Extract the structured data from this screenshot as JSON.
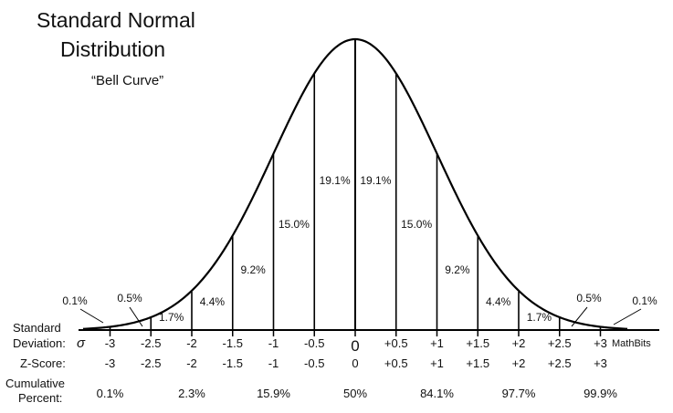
{
  "title_line1": "Standard Normal",
  "title_line2": "Distribution",
  "subtitle": "“Bell Curve”",
  "watermark": "MathBits",
  "row_labels": {
    "sd_line1": "Standard",
    "sd_line2": "Deviation:",
    "sigma": "σ",
    "z": "Z-Score:",
    "cum_line1": "Cumulative",
    "cum_line2": "Percent:"
  },
  "chart_data": {
    "type": "area",
    "curve": "standard normal density",
    "x_range": [
      -3.2,
      3.2
    ],
    "sd_ticks": [
      {
        "z": -3,
        "label": "-3"
      },
      {
        "z": -2.5,
        "label": "-2.5"
      },
      {
        "z": -2,
        "label": "-2"
      },
      {
        "z": -1.5,
        "label": "-1.5"
      },
      {
        "z": -1,
        "label": "-1"
      },
      {
        "z": -0.5,
        "label": "-0.5"
      },
      {
        "z": 0,
        "label": "0"
      },
      {
        "z": 0.5,
        "label": "+0.5"
      },
      {
        "z": 1,
        "label": "+1"
      },
      {
        "z": 1.5,
        "label": "+1.5"
      },
      {
        "z": 2,
        "label": "+2"
      },
      {
        "z": 2.5,
        "label": "+2.5"
      },
      {
        "z": 3,
        "label": "+3"
      }
    ],
    "z_scores": [
      {
        "z": -3,
        "label": "-3"
      },
      {
        "z": -2.5,
        "label": "-2.5"
      },
      {
        "z": -2,
        "label": "-2"
      },
      {
        "z": -1.5,
        "label": "-1.5"
      },
      {
        "z": -1,
        "label": "-1"
      },
      {
        "z": -0.5,
        "label": "-0.5"
      },
      {
        "z": 0,
        "label": "0"
      },
      {
        "z": 0.5,
        "label": "+0.5"
      },
      {
        "z": 1,
        "label": "+1"
      },
      {
        "z": 1.5,
        "label": "+1.5"
      },
      {
        "z": 2,
        "label": "+2"
      },
      {
        "z": 2.5,
        "label": "+2.5"
      },
      {
        "z": 3,
        "label": "+3"
      }
    ],
    "regions": [
      {
        "from": -3,
        "to": -2.5,
        "label": "0.5%",
        "value": 0.5
      },
      {
        "from": -2.5,
        "to": -2,
        "label": "1.7%",
        "value": 1.7
      },
      {
        "from": -2,
        "to": -1.5,
        "label": "4.4%",
        "value": 4.4
      },
      {
        "from": -1.5,
        "to": -1,
        "label": "9.2%",
        "value": 9.2
      },
      {
        "from": -1,
        "to": -0.5,
        "label": "15.0%",
        "value": 15.0
      },
      {
        "from": -0.5,
        "to": 0,
        "label": "19.1%",
        "value": 19.1
      },
      {
        "from": 0,
        "to": 0.5,
        "label": "19.1%",
        "value": 19.1
      },
      {
        "from": 0.5,
        "to": 1,
        "label": "15.0%",
        "value": 15.0
      },
      {
        "from": 1,
        "to": 1.5,
        "label": "9.2%",
        "value": 9.2
      },
      {
        "from": 1.5,
        "to": 2,
        "label": "4.4%",
        "value": 4.4
      },
      {
        "from": 2,
        "to": 2.5,
        "label": "1.7%",
        "value": 1.7
      },
      {
        "from": 2.5,
        "to": 3,
        "label": "0.5%",
        "value": 0.5
      }
    ],
    "tails": [
      {
        "side": "left",
        "label": "0.1%",
        "value": 0.1
      },
      {
        "side": "right",
        "label": "0.1%",
        "value": 0.1
      }
    ],
    "cumulative": [
      {
        "z": -3,
        "label": "0.1%",
        "value": 0.1
      },
      {
        "z": -2,
        "label": "2.3%",
        "value": 2.3
      },
      {
        "z": -1,
        "label": "15.9%",
        "value": 15.9
      },
      {
        "z": 0,
        "label": "50%",
        "value": 50
      },
      {
        "z": 1,
        "label": "84.1%",
        "value": 84.1
      },
      {
        "z": 2,
        "label": "97.7%",
        "value": 97.7
      },
      {
        "z": 3,
        "label": "99.9%",
        "value": 99.9
      }
    ]
  }
}
